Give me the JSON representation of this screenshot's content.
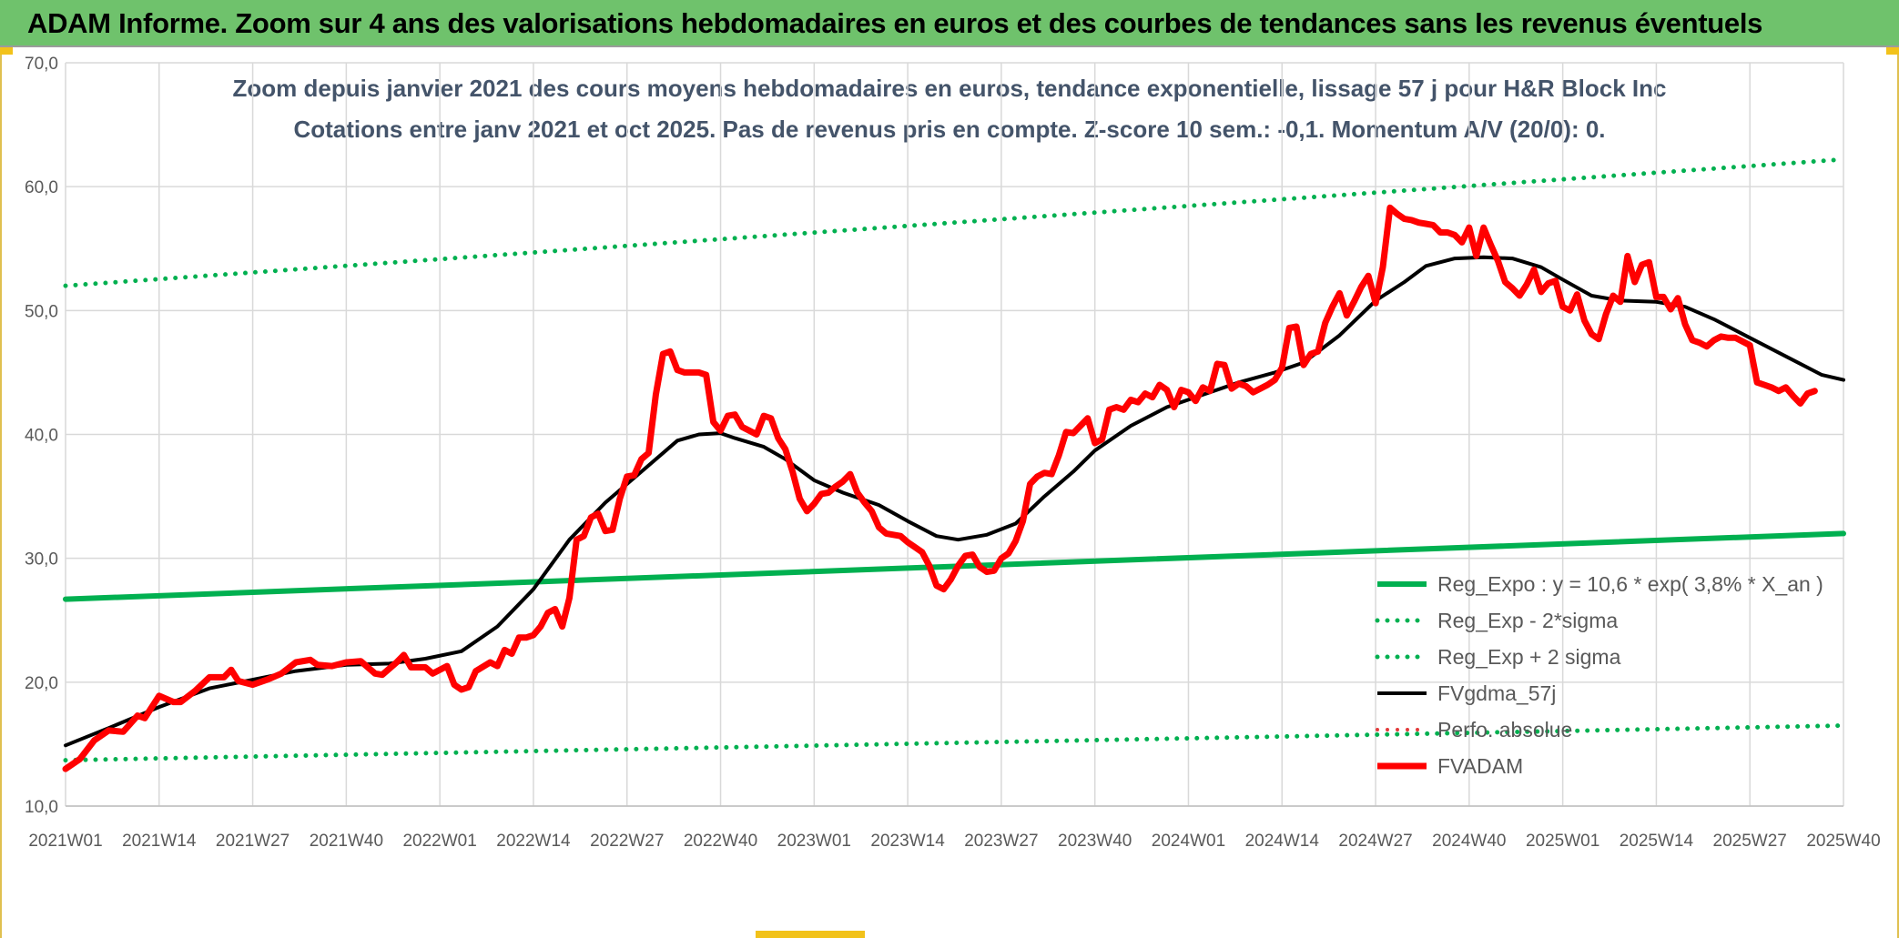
{
  "header": {
    "title": "ADAM Informe. Zoom sur 4 ans des valorisations hebdomadaires en euros et des courbes de tendances sans les revenus éventuels"
  },
  "chart_data": {
    "type": "line",
    "title_line1": "Zoom depuis janvier 2021 des cours moyens hebdomadaires en euros, tendance exponentielle, lissage 57 j pour H&R Block Inc",
    "title_line2": "Cotations entre janv 2021 et oct 2025. Pas de revenus pris en compte. Z-score 10 sem.: -0,1. Momentum A/V (20/0): 0.",
    "ylim": [
      10,
      70
    ],
    "y_ticks": [
      "70,0",
      "60,0",
      "50,0",
      "40,0",
      "30,0",
      "20,0",
      "10,0"
    ],
    "y_tick_values": [
      70,
      60,
      50,
      40,
      30,
      20,
      10
    ],
    "x_ticks": [
      "2021W01",
      "2021W14",
      "2021W27",
      "2021W40",
      "2022W01",
      "2022W14",
      "2022W27",
      "2022W40",
      "2023W01",
      "2023W14",
      "2023W27",
      "2023W40",
      "2024W01",
      "2024W14",
      "2024W27",
      "2024W40",
      "2025W01",
      "2025W14",
      "2025W27",
      "2025W40"
    ],
    "x_tick_index": [
      0,
      13,
      26,
      39,
      52,
      65,
      78,
      91,
      104,
      117,
      130,
      143,
      156,
      169,
      182,
      195,
      208,
      221,
      234,
      247
    ],
    "n_weeks": 248,
    "series": [
      {
        "name": "Reg_Expo : y = 10,6 * exp( 3,8% *  X_an )",
        "color": "#00b050",
        "style": "solid",
        "width": 6,
        "points": [
          [
            0,
            26.7
          ],
          [
            247,
            32.0
          ]
        ]
      },
      {
        "name": "Reg_Exp - 2*sigma",
        "color": "#00b050",
        "style": "dotted",
        "width": 5,
        "points": [
          [
            0,
            13.7
          ],
          [
            247,
            16.5
          ]
        ]
      },
      {
        "name": "Reg_Exp + 2 sigma",
        "color": "#00b050",
        "style": "dotted",
        "width": 5,
        "points": [
          [
            0,
            52.0
          ],
          [
            247,
            62.2
          ]
        ]
      },
      {
        "name": "FVgdma_57j",
        "color": "#000000",
        "style": "solid",
        "width": 4,
        "points": [
          [
            0,
            14.9
          ],
          [
            6,
            16.3
          ],
          [
            13,
            18.0
          ],
          [
            20,
            19.5
          ],
          [
            26,
            20.2
          ],
          [
            32,
            20.9
          ],
          [
            39,
            21.4
          ],
          [
            45,
            21.5
          ],
          [
            50,
            21.9
          ],
          [
            55,
            22.5
          ],
          [
            60,
            24.5
          ],
          [
            65,
            27.5
          ],
          [
            70,
            31.5
          ],
          [
            75,
            34.5
          ],
          [
            80,
            37.0
          ],
          [
            85,
            39.5
          ],
          [
            88,
            40.0
          ],
          [
            91,
            40.1
          ],
          [
            93,
            39.7
          ],
          [
            97,
            39.0
          ],
          [
            100,
            38.0
          ],
          [
            104,
            36.3
          ],
          [
            108,
            35.3
          ],
          [
            113,
            34.3
          ],
          [
            117,
            33.0
          ],
          [
            121,
            31.8
          ],
          [
            124,
            31.5
          ],
          [
            128,
            31.9
          ],
          [
            132,
            32.8
          ],
          [
            136,
            35.0
          ],
          [
            140,
            37.0
          ],
          [
            143,
            38.7
          ],
          [
            148,
            40.7
          ],
          [
            153,
            42.2
          ],
          [
            158,
            43.2
          ],
          [
            163,
            44.2
          ],
          [
            168,
            45.0
          ],
          [
            172,
            45.8
          ],
          [
            177,
            48.0
          ],
          [
            182,
            50.8
          ],
          [
            186,
            52.3
          ],
          [
            189,
            53.6
          ],
          [
            193,
            54.2
          ],
          [
            197,
            54.3
          ],
          [
            201,
            54.2
          ],
          [
            205,
            53.5
          ],
          [
            208,
            52.5
          ],
          [
            212,
            51.2
          ],
          [
            216,
            50.8
          ],
          [
            221,
            50.7
          ],
          [
            225,
            50.3
          ],
          [
            229,
            49.3
          ],
          [
            234,
            47.8
          ],
          [
            239,
            46.3
          ],
          [
            244,
            44.8
          ],
          [
            247,
            44.4
          ]
        ]
      },
      {
        "name": "Perfo. absolue",
        "color": "#e23b3b",
        "style": "dotted",
        "width": 4,
        "points": []
      },
      {
        "name": "FVADAM",
        "color": "#ff0000",
        "style": "solid",
        "width": 7,
        "points": [
          [
            0,
            13.0
          ],
          [
            2,
            13.8
          ],
          [
            4,
            15.3
          ],
          [
            6,
            16.1
          ],
          [
            8,
            16.0
          ],
          [
            10,
            17.3
          ],
          [
            11,
            17.1
          ],
          [
            13,
            18.9
          ],
          [
            15,
            18.4
          ],
          [
            16,
            18.4
          ],
          [
            18,
            19.3
          ],
          [
            20,
            20.4
          ],
          [
            22,
            20.4
          ],
          [
            23,
            21.0
          ],
          [
            24,
            20.1
          ],
          [
            26,
            19.8
          ],
          [
            28,
            20.2
          ],
          [
            30,
            20.7
          ],
          [
            32,
            21.6
          ],
          [
            34,
            21.8
          ],
          [
            35,
            21.4
          ],
          [
            37,
            21.3
          ],
          [
            39,
            21.6
          ],
          [
            41,
            21.7
          ],
          [
            43,
            20.7
          ],
          [
            44,
            20.6
          ],
          [
            46,
            21.6
          ],
          [
            47,
            22.2
          ],
          [
            48,
            21.2
          ],
          [
            50,
            21.2
          ],
          [
            51,
            20.7
          ],
          [
            53,
            21.3
          ],
          [
            54,
            19.8
          ],
          [
            55,
            19.4
          ],
          [
            56,
            19.6
          ],
          [
            57,
            20.9
          ],
          [
            59,
            21.6
          ],
          [
            60,
            21.3
          ],
          [
            61,
            22.6
          ],
          [
            62,
            22.3
          ],
          [
            63,
            23.6
          ],
          [
            64,
            23.6
          ],
          [
            65,
            23.8
          ],
          [
            66,
            24.5
          ],
          [
            67,
            25.6
          ],
          [
            68,
            25.9
          ],
          [
            69,
            24.5
          ],
          [
            70,
            26.8
          ],
          [
            71,
            31.5
          ],
          [
            72,
            31.8
          ],
          [
            73,
            33.3
          ],
          [
            74,
            33.6
          ],
          [
            75,
            32.2
          ],
          [
            76,
            32.3
          ],
          [
            77,
            34.8
          ],
          [
            78,
            36.6
          ],
          [
            79,
            36.7
          ],
          [
            80,
            38.0
          ],
          [
            81,
            38.5
          ],
          [
            82,
            43.2
          ],
          [
            83,
            46.5
          ],
          [
            84,
            46.7
          ],
          [
            85,
            45.2
          ],
          [
            86,
            45.0
          ],
          [
            87,
            45.0
          ],
          [
            88,
            45.0
          ],
          [
            89,
            44.8
          ],
          [
            90,
            41.0
          ],
          [
            91,
            40.3
          ],
          [
            92,
            41.5
          ],
          [
            93,
            41.6
          ],
          [
            94,
            40.6
          ],
          [
            95,
            40.3
          ],
          [
            96,
            40.0
          ],
          [
            97,
            41.5
          ],
          [
            98,
            41.3
          ],
          [
            99,
            39.7
          ],
          [
            100,
            38.8
          ],
          [
            101,
            37.0
          ],
          [
            102,
            34.8
          ],
          [
            103,
            33.8
          ],
          [
            104,
            34.4
          ],
          [
            105,
            35.2
          ],
          [
            106,
            35.3
          ],
          [
            107,
            35.8
          ],
          [
            108,
            36.2
          ],
          [
            109,
            36.8
          ],
          [
            110,
            35.3
          ],
          [
            111,
            34.5
          ],
          [
            112,
            33.8
          ],
          [
            113,
            32.5
          ],
          [
            114,
            32.0
          ],
          [
            115,
            31.9
          ],
          [
            116,
            31.8
          ],
          [
            117,
            31.3
          ],
          [
            118,
            30.9
          ],
          [
            119,
            30.5
          ],
          [
            120,
            29.4
          ],
          [
            121,
            27.8
          ],
          [
            122,
            27.5
          ],
          [
            123,
            28.3
          ],
          [
            124,
            29.4
          ],
          [
            125,
            30.2
          ],
          [
            126,
            30.3
          ],
          [
            127,
            29.3
          ],
          [
            128,
            28.9
          ],
          [
            129,
            29.0
          ],
          [
            130,
            30.0
          ],
          [
            131,
            30.4
          ],
          [
            132,
            31.4
          ],
          [
            133,
            33.0
          ],
          [
            134,
            36.0
          ],
          [
            135,
            36.6
          ],
          [
            136,
            36.9
          ],
          [
            137,
            36.8
          ],
          [
            138,
            38.3
          ],
          [
            139,
            40.2
          ],
          [
            140,
            40.1
          ],
          [
            141,
            40.7
          ],
          [
            142,
            41.3
          ],
          [
            143,
            39.3
          ],
          [
            144,
            39.6
          ],
          [
            145,
            42.0
          ],
          [
            146,
            42.2
          ],
          [
            147,
            42.0
          ],
          [
            148,
            42.8
          ],
          [
            149,
            42.6
          ],
          [
            150,
            43.3
          ],
          [
            151,
            43.0
          ],
          [
            152,
            44.0
          ],
          [
            153,
            43.6
          ],
          [
            154,
            42.2
          ],
          [
            155,
            43.6
          ],
          [
            156,
            43.4
          ],
          [
            157,
            42.7
          ],
          [
            158,
            43.8
          ],
          [
            159,
            43.5
          ],
          [
            160,
            45.7
          ],
          [
            161,
            45.6
          ],
          [
            162,
            43.7
          ],
          [
            163,
            44.1
          ],
          [
            164,
            43.9
          ],
          [
            165,
            43.4
          ],
          [
            166,
            43.7
          ],
          [
            167,
            44.0
          ],
          [
            168,
            44.4
          ],
          [
            169,
            45.4
          ],
          [
            170,
            48.6
          ],
          [
            171,
            48.7
          ],
          [
            172,
            45.6
          ],
          [
            173,
            46.5
          ],
          [
            174,
            46.7
          ],
          [
            175,
            49.0
          ],
          [
            176,
            50.3
          ],
          [
            177,
            51.4
          ],
          [
            178,
            49.6
          ],
          [
            179,
            50.7
          ],
          [
            180,
            51.9
          ],
          [
            181,
            52.8
          ],
          [
            182,
            50.6
          ],
          [
            183,
            53.5
          ],
          [
            184,
            58.3
          ],
          [
            185,
            57.8
          ],
          [
            186,
            57.4
          ],
          [
            187,
            57.3
          ],
          [
            188,
            57.1
          ],
          [
            189,
            57.0
          ],
          [
            190,
            56.9
          ],
          [
            191,
            56.3
          ],
          [
            192,
            56.3
          ],
          [
            193,
            56.1
          ],
          [
            194,
            55.5
          ],
          [
            195,
            56.7
          ],
          [
            196,
            54.4
          ],
          [
            197,
            56.7
          ],
          [
            198,
            55.3
          ],
          [
            199,
            54.0
          ],
          [
            200,
            52.3
          ],
          [
            201,
            51.8
          ],
          [
            202,
            51.2
          ],
          [
            203,
            52.1
          ],
          [
            204,
            53.3
          ],
          [
            205,
            51.5
          ],
          [
            206,
            52.2
          ],
          [
            207,
            52.4
          ],
          [
            208,
            50.3
          ],
          [
            209,
            50.0
          ],
          [
            210,
            51.3
          ],
          [
            211,
            49.2
          ],
          [
            212,
            48.1
          ],
          [
            213,
            47.7
          ],
          [
            214,
            49.7
          ],
          [
            215,
            51.2
          ],
          [
            216,
            50.7
          ],
          [
            217,
            54.4
          ],
          [
            218,
            52.3
          ],
          [
            219,
            53.7
          ],
          [
            220,
            53.9
          ],
          [
            221,
            51.1
          ],
          [
            222,
            51.1
          ],
          [
            223,
            50.1
          ],
          [
            224,
            51.0
          ],
          [
            225,
            48.9
          ],
          [
            226,
            47.6
          ],
          [
            227,
            47.4
          ],
          [
            228,
            47.1
          ],
          [
            229,
            47.6
          ],
          [
            230,
            47.9
          ],
          [
            231,
            47.8
          ],
          [
            232,
            47.8
          ],
          [
            233,
            47.5
          ],
          [
            234,
            47.2
          ],
          [
            235,
            44.2
          ],
          [
            236,
            44.0
          ],
          [
            237,
            43.8
          ],
          [
            238,
            43.5
          ],
          [
            239,
            43.8
          ],
          [
            240,
            43.1
          ],
          [
            241,
            42.5
          ],
          [
            242,
            43.3
          ],
          [
            243,
            43.5
          ]
        ]
      }
    ]
  }
}
